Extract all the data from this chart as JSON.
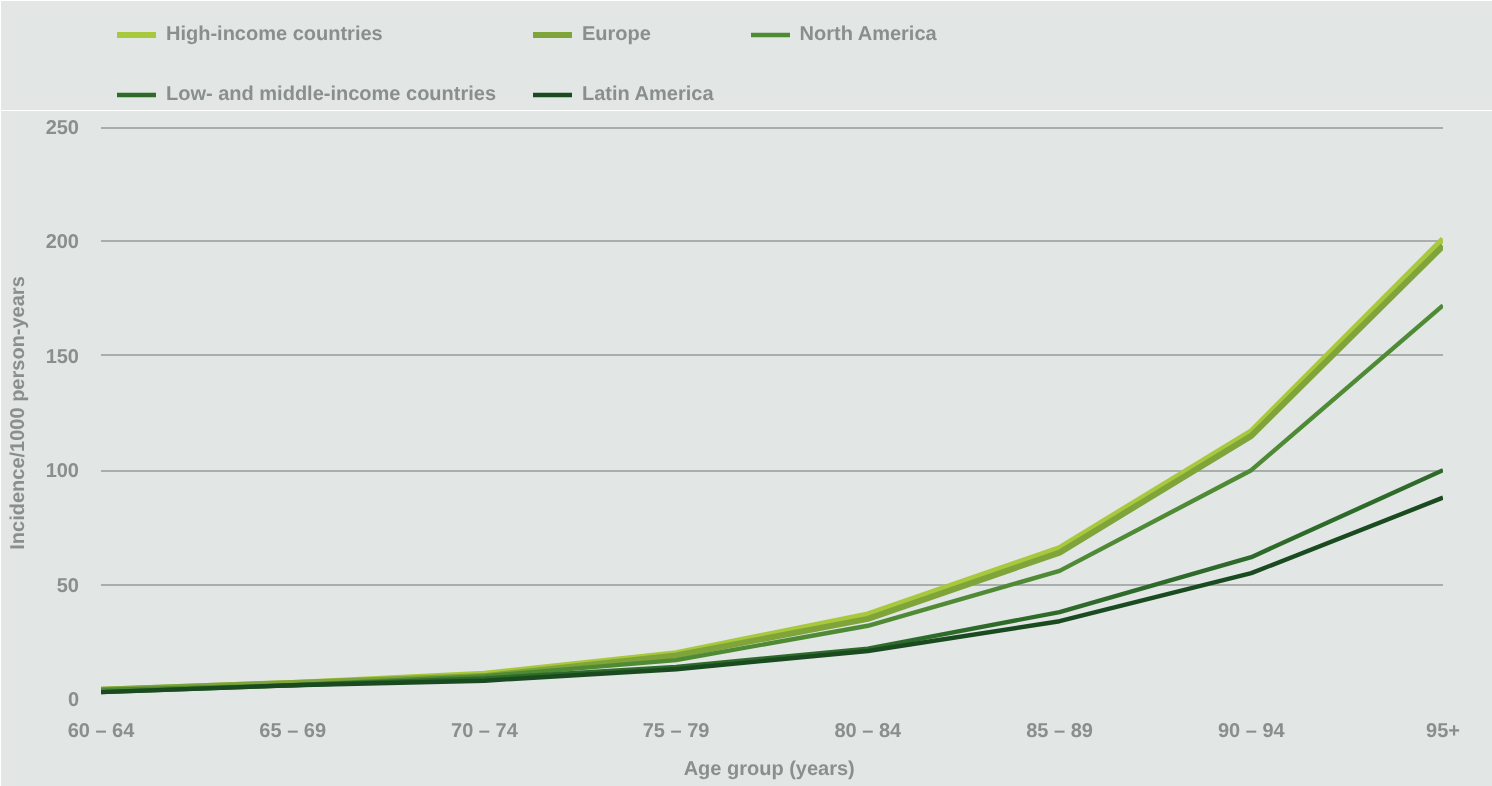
{
  "chart_data": {
    "type": "line",
    "xlabel": "Age group  (years)",
    "ylabel": "Incidence/1000 person-years",
    "categories": [
      "60 – 64",
      "65 – 69",
      "70 – 74",
      "75 – 79",
      "80 – 84",
      "85 – 89",
      "90 – 94",
      "95+"
    ],
    "ylim": [
      0,
      250
    ],
    "yticks": [
      0,
      50,
      100,
      150,
      200,
      250
    ],
    "grid": "y",
    "legend": "top left",
    "line_style": "solid",
    "marker": "none",
    "series": [
      {
        "name": "High-income countries",
        "color": "#a8c83e",
        "values": [
          4,
          7,
          11,
          20,
          37,
          66,
          117,
          201
        ]
      },
      {
        "name": "Europe",
        "color": "#7fa43a",
        "values": [
          4,
          7,
          10,
          19,
          35,
          64,
          115,
          198
        ]
      },
      {
        "name": "North America",
        "color": "#4f8a35",
        "values": [
          4,
          6,
          10,
          17,
          32,
          56,
          100,
          172
        ]
      },
      {
        "name": "Low- and middle-income countries",
        "color": "#2e6b2a",
        "values": [
          3,
          6,
          9,
          14,
          22,
          38,
          62,
          100
        ]
      },
      {
        "name": "Latin America",
        "color": "#1a4a20",
        "values": [
          3,
          6,
          8,
          13,
          21,
          34,
          55,
          88
        ]
      }
    ]
  }
}
